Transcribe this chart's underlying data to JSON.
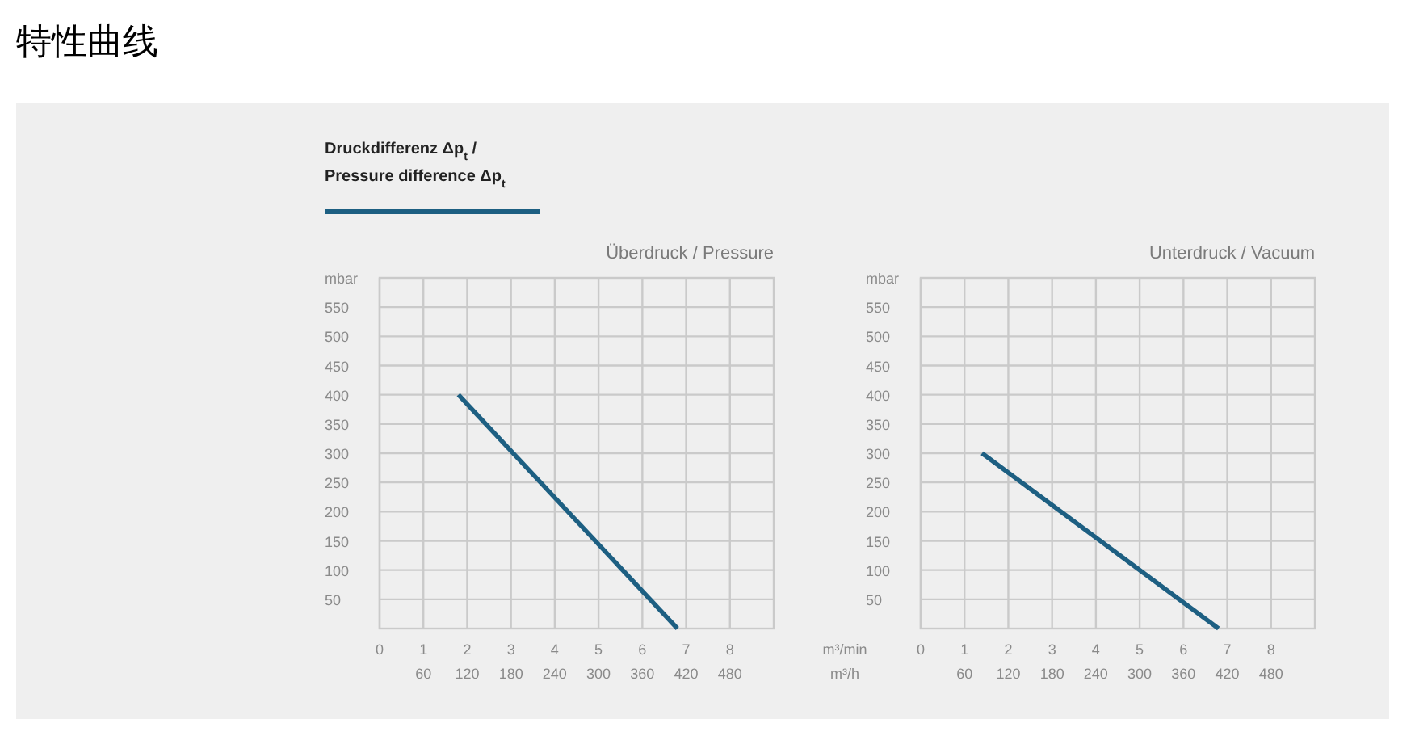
{
  "chart_data": [
    {
      "type": "line",
      "title": "特性曲线",
      "subtitle": "Überdruck / Pressure",
      "ylabel": "mbar",
      "legend": "top left",
      "grid": true,
      "line_style": "solid",
      "series": [
        {
          "name": "Druckdifferenz Δp$_{t}$ /\nPressure difference Δp$_{t}$",
          "color": "#1d5f82",
          "x": [
            1.8,
            6.8
          ],
          "values": [
            400,
            0
          ]
        }
      ],
      "xlim": [
        0,
        9
      ],
      "xticks": [
        0,
        1,
        2,
        3,
        4,
        5,
        6,
        7,
        8
      ],
      "x2lim": [
        0,
        540
      ],
      "x2ticks": [
        60,
        120,
        180,
        240,
        300,
        360,
        420,
        480
      ],
      "ylim": [
        0,
        600
      ],
      "yticks": [
        50,
        100,
        150,
        200,
        250,
        300,
        350,
        400,
        450,
        500,
        550
      ]
    },
    {
      "type": "line",
      "subtitle": "Unterdruck / Vacuum",
      "xlabel": "m³/min",
      "x2label": "m³/h",
      "ylabel": "mbar",
      "grid": true,
      "line_style": "solid",
      "series": [
        {
          "color": "#1d5f82",
          "x": [
            1.4,
            6.8
          ],
          "values": [
            300,
            0
          ]
        }
      ],
      "xlim": [
        0,
        9
      ],
      "xticks": [
        0,
        1,
        2,
        3,
        4,
        5,
        6,
        7,
        8
      ],
      "x2lim": [
        0,
        540
      ],
      "x2ticks": [
        60,
        120,
        180,
        240,
        300,
        360,
        420,
        480
      ],
      "ylim": [
        0,
        600
      ],
      "yticks": [
        50,
        100,
        150,
        200,
        250,
        300,
        350,
        400,
        450,
        500,
        550
      ]
    }
  ]
}
